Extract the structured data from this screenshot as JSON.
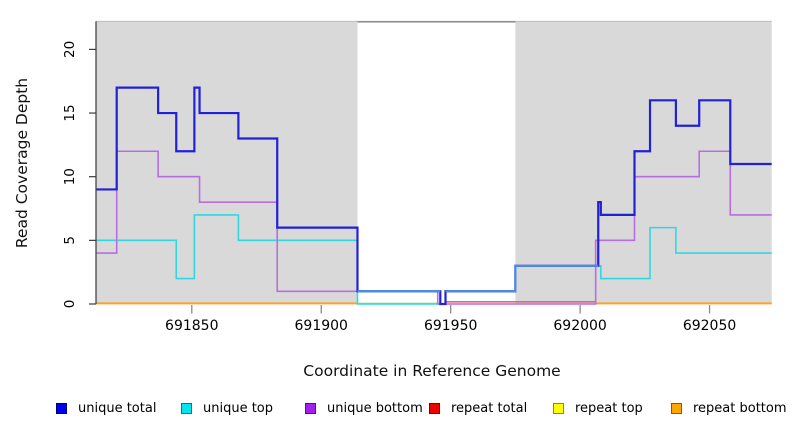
{
  "chart_data": {
    "type": "line",
    "subtype": "step-coverage-plot",
    "title": "",
    "xlabel": "Coordinate in Reference Genome",
    "ylabel": "Read Coverage Depth",
    "x_range": [
      691813,
      692074
    ],
    "y_range": [
      0,
      22.2
    ],
    "x_ticks": [
      691850,
      691900,
      691950,
      692000,
      692050
    ],
    "y_ticks": [
      0,
      5,
      10,
      15,
      20
    ],
    "grid": "off",
    "plot_background": "#ffffff",
    "shade_color": "#d9d9d9",
    "shaded_regions": [
      {
        "from": 691813,
        "to": 691914
      },
      {
        "from": 691975,
        "to": 692074
      }
    ],
    "gap_region": {
      "from": 691914,
      "to": 691975,
      "top_border_color": "#7f7f7f"
    },
    "series": [
      {
        "name": "unique top",
        "color": "#2fd8e0",
        "width": 1.6,
        "end": 692074,
        "steps": [
          [
            691813,
            5
          ],
          [
            691844,
            2
          ],
          [
            691851,
            7
          ],
          [
            691868,
            5
          ],
          [
            691914,
            0
          ],
          [
            691948,
            1
          ],
          [
            691975,
            3
          ],
          [
            692008,
            2
          ],
          [
            692027,
            6
          ],
          [
            692037,
            4
          ]
        ]
      },
      {
        "name": "unique bottom",
        "color": "#b76ee0",
        "width": 1.6,
        "end": 692074,
        "steps": [
          [
            691813,
            4
          ],
          [
            691821,
            12
          ],
          [
            691837,
            10
          ],
          [
            691853,
            8
          ],
          [
            691883,
            1
          ],
          [
            691945,
            0
          ],
          [
            692006,
            5
          ],
          [
            692021,
            10
          ],
          [
            692046,
            12
          ],
          [
            692058,
            7
          ]
        ]
      },
      {
        "name": "unique total",
        "color": "#2121d8",
        "width": 2.2,
        "end": 692074,
        "steps": [
          [
            691813,
            9
          ],
          [
            691821,
            17
          ],
          [
            691837,
            15
          ],
          [
            691844,
            12
          ],
          [
            691851,
            17
          ],
          [
            691853,
            15
          ],
          [
            691868,
            13
          ],
          [
            691883,
            6
          ],
          [
            691914,
            1
          ],
          [
            691946,
            0
          ],
          [
            691948,
            1
          ],
          [
            691975,
            3
          ],
          [
            692007,
            8
          ],
          [
            692008,
            7
          ],
          [
            692021,
            12
          ],
          [
            692027,
            16
          ],
          [
            692037,
            14
          ],
          [
            692046,
            16
          ],
          [
            692058,
            11
          ]
        ]
      }
    ],
    "overlay_segments": [
      {
        "name": "unique-total-over-bottom",
        "color": "#4d8ce0",
        "width": 2.2,
        "points": [
          [
            691914,
            1
          ],
          [
            691946,
            1
          ]
        ]
      },
      {
        "name": "unique-total-over-top",
        "color": "#4d8ce0",
        "width": 2.2,
        "points": [
          [
            691948,
            1
          ],
          [
            691975,
            1
          ],
          [
            691975,
            3
          ],
          [
            692007,
            3
          ]
        ]
      }
    ],
    "baseline_segments": [
      {
        "name": "repeat-bottom-left",
        "color": "#ffa128",
        "width": 2.0,
        "from": 691813,
        "to": 691914,
        "y": 0.05
      },
      {
        "name": "gap-zero-line",
        "color": "#9cdf9c",
        "width": 1.6,
        "from": 691914,
        "to": 691946,
        "y": 0.05
      },
      {
        "name": "repeat-total-zero-line",
        "color": "#dc6489",
        "width": 1.6,
        "from": 691948,
        "to": 692006,
        "y": 0.17
      },
      {
        "name": "repeat-bottom-right",
        "color": "#ffa128",
        "width": 2.0,
        "from": 692006,
        "to": 692074,
        "y": 0.05
      }
    ],
    "legend": [
      {
        "label": "unique total",
        "color": "#0000ee"
      },
      {
        "label": "unique top",
        "color": "#00e5ee"
      },
      {
        "label": "unique bottom",
        "color": "#a020f0"
      },
      {
        "label": "repeat total",
        "color": "#ee0000"
      },
      {
        "label": "repeat top",
        "color": "#ffff00"
      },
      {
        "label": "repeat bottom",
        "color": "#ffa500"
      }
    ],
    "legend_position": "bottom",
    "axis_colors": {
      "y_axis": "#3a3a3a",
      "x_ticks": "#8a8a8a",
      "labels": "#000000"
    }
  }
}
